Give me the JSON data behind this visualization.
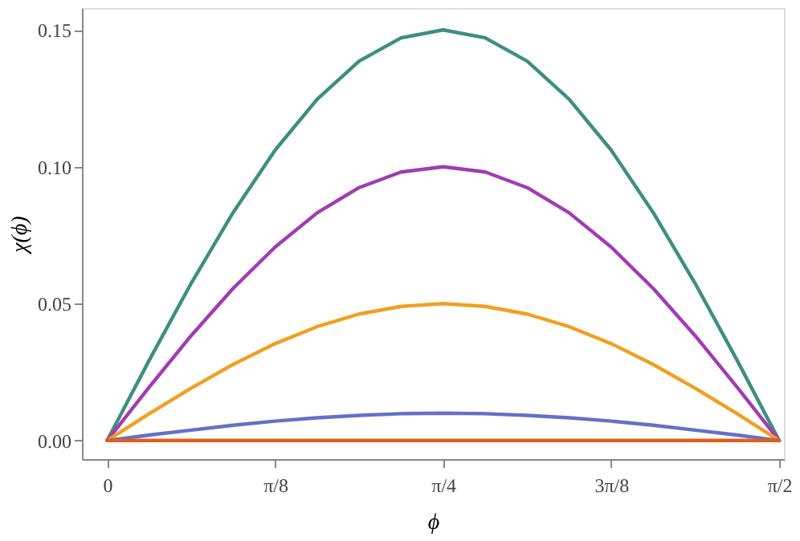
{
  "chart_data": {
    "type": "line",
    "xlabel": "ϕ",
    "ylabel": "χ(ϕ)",
    "x": [
      0,
      0.0982,
      0.1963,
      0.2945,
      0.3927,
      0.4909,
      0.589,
      0.6872,
      0.7854,
      0.8836,
      0.9817,
      1.0799,
      1.1781,
      1.2763,
      1.3744,
      1.4726,
      1.5708
    ],
    "series": [
      {
        "color": "#3d8f7f",
        "values": [
          0,
          0.0293,
          0.0574,
          0.0833,
          0.1061,
          0.1247,
          0.1386,
          0.1471,
          0.15,
          0.1471,
          0.1386,
          0.1247,
          0.1061,
          0.0833,
          0.0574,
          0.0293,
          0
        ]
      },
      {
        "color": "#a03cb4",
        "values": [
          0,
          0.0195,
          0.0383,
          0.0556,
          0.0707,
          0.0832,
          0.0924,
          0.0981,
          0.1,
          0.0981,
          0.0924,
          0.0832,
          0.0707,
          0.0556,
          0.0383,
          0.0195,
          0
        ]
      },
      {
        "color": "#f0a020",
        "values": [
          0,
          0.0098,
          0.0191,
          0.0278,
          0.0354,
          0.0416,
          0.0462,
          0.049,
          0.05,
          0.049,
          0.0462,
          0.0416,
          0.0354,
          0.0278,
          0.0191,
          0.0098,
          0
        ]
      },
      {
        "color": "#6470c8",
        "values": [
          0,
          0.002,
          0.0038,
          0.0056,
          0.0071,
          0.0083,
          0.0092,
          0.0098,
          0.01,
          0.0098,
          0.0092,
          0.0083,
          0.0071,
          0.0056,
          0.0038,
          0.002,
          0
        ]
      },
      {
        "color": "#e0601e",
        "values": [
          0,
          0,
          0,
          0,
          0,
          0,
          0,
          0,
          0,
          0,
          0,
          0,
          0,
          0,
          0,
          0,
          0
        ]
      }
    ],
    "xlim": [
      -0.059,
      1.582
    ],
    "ylim": [
      -0.0068,
      0.158
    ],
    "xticks": [
      {
        "value": 0,
        "label": "0"
      },
      {
        "value": 0.3927,
        "label": "π/8"
      },
      {
        "value": 0.7854,
        "label": "π/4"
      },
      {
        "value": 1.1781,
        "label": "3π/8"
      },
      {
        "value": 1.5708,
        "label": "π/2"
      }
    ],
    "yticks": [
      {
        "value": 0,
        "label": "0.00"
      },
      {
        "value": 0.05,
        "label": "0.05"
      },
      {
        "value": 0.1,
        "label": "0.10"
      },
      {
        "value": 0.15,
        "label": "0.15"
      }
    ],
    "grid": false,
    "legend": false,
    "marker": "none",
    "line_style": "solid"
  }
}
